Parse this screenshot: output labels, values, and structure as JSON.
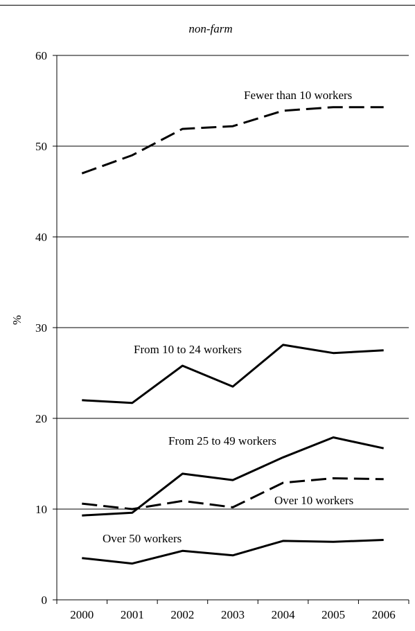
{
  "chart_data": {
    "type": "line",
    "title": "non-farm",
    "xlabel": "",
    "ylabel": "%",
    "x": [
      "2000",
      "2001",
      "2002",
      "2003",
      "2004",
      "2005",
      "2006"
    ],
    "ylim": [
      0,
      60
    ],
    "yticks": [
      "0",
      "10",
      "20",
      "30",
      "40",
      "50",
      "60"
    ],
    "grid": "horizontal",
    "series": [
      {
        "name": "Fewer than 10 workers",
        "style": "dashed",
        "values": [
          47.0,
          49.0,
          51.9,
          52.2,
          53.9,
          54.3,
          54.3
        ]
      },
      {
        "name": "From 10 to 24 workers",
        "style": "solid",
        "values": [
          22.0,
          21.7,
          25.8,
          23.5,
          28.1,
          27.2,
          27.5
        ]
      },
      {
        "name": "From 25 to 49 workers",
        "style": "solid",
        "values": [
          9.3,
          9.6,
          13.9,
          13.2,
          15.7,
          17.9,
          16.7
        ]
      },
      {
        "name": "Over 10 workers",
        "style": "dashed",
        "values": [
          10.6,
          10.0,
          10.9,
          10.2,
          12.9,
          13.4,
          13.3
        ]
      },
      {
        "name": "Over 50 workers",
        "style": "solid",
        "values": [
          4.6,
          4.0,
          5.4,
          4.9,
          6.5,
          6.4,
          6.6
        ]
      }
    ]
  }
}
